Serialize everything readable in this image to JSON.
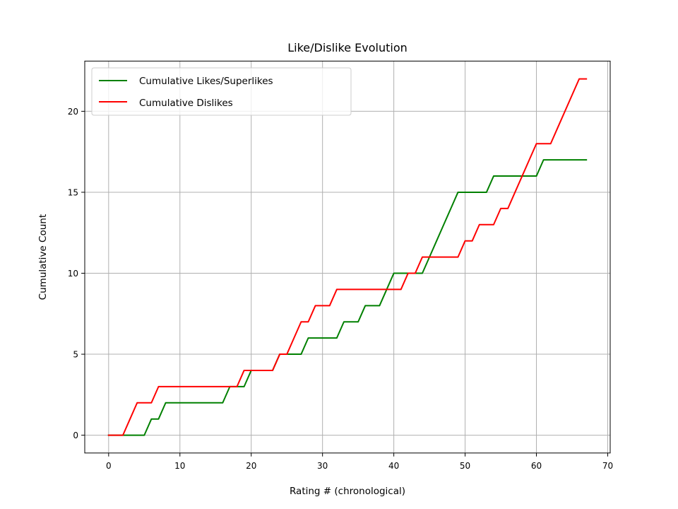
{
  "chart_data": {
    "type": "line",
    "title": "Like/Dislike Evolution",
    "xlabel": "Rating # (chronological)",
    "ylabel": "Cumulative Count",
    "xlim": [
      -3.35,
      70.35
    ],
    "ylim": [
      -1.1,
      23.1
    ],
    "xticks": [
      0,
      10,
      20,
      30,
      40,
      50,
      60,
      70
    ],
    "yticks": [
      0,
      5,
      10,
      15,
      20
    ],
    "grid": true,
    "legend_position": "upper-left",
    "x": [
      0,
      1,
      2,
      3,
      4,
      5,
      6,
      7,
      8,
      9,
      10,
      11,
      12,
      13,
      14,
      15,
      16,
      17,
      18,
      19,
      20,
      21,
      22,
      23,
      24,
      25,
      26,
      27,
      28,
      29,
      30,
      31,
      32,
      33,
      34,
      35,
      36,
      37,
      38,
      39,
      40,
      41,
      42,
      43,
      44,
      45,
      46,
      47,
      48,
      49,
      50,
      51,
      52,
      53,
      54,
      55,
      56,
      57,
      58,
      59,
      60,
      61,
      62,
      63,
      64,
      65,
      66,
      67
    ],
    "series": [
      {
        "name": "Cumulative Likes/Superlikes",
        "color": "#008000",
        "values": [
          0,
          0,
          0,
          0,
          0,
          0,
          1,
          1,
          2,
          2,
          2,
          2,
          2,
          2,
          2,
          2,
          2,
          3,
          3,
          3,
          4,
          4,
          4,
          4,
          5,
          5,
          5,
          5,
          6,
          6,
          6,
          6,
          6,
          7,
          7,
          7,
          8,
          8,
          8,
          9,
          10,
          10,
          10,
          10,
          10,
          11,
          12,
          13,
          14,
          15,
          15,
          15,
          15,
          15,
          16,
          16,
          16,
          16,
          16,
          16,
          16,
          17,
          17,
          17,
          17,
          17,
          17,
          17
        ]
      },
      {
        "name": "Cumulative Dislikes",
        "color": "#ff0000",
        "values": [
          0,
          0,
          0,
          1,
          2,
          2,
          2,
          3,
          3,
          3,
          3,
          3,
          3,
          3,
          3,
          3,
          3,
          3,
          3,
          4,
          4,
          4,
          4,
          4,
          5,
          5,
          6,
          7,
          7,
          8,
          8,
          8,
          9,
          9,
          9,
          9,
          9,
          9,
          9,
          9,
          9,
          9,
          10,
          10,
          11,
          11,
          11,
          11,
          11,
          11,
          12,
          12,
          13,
          13,
          13,
          14,
          14,
          15,
          16,
          17,
          18,
          18,
          18,
          19,
          20,
          21,
          22,
          22
        ]
      }
    ]
  }
}
